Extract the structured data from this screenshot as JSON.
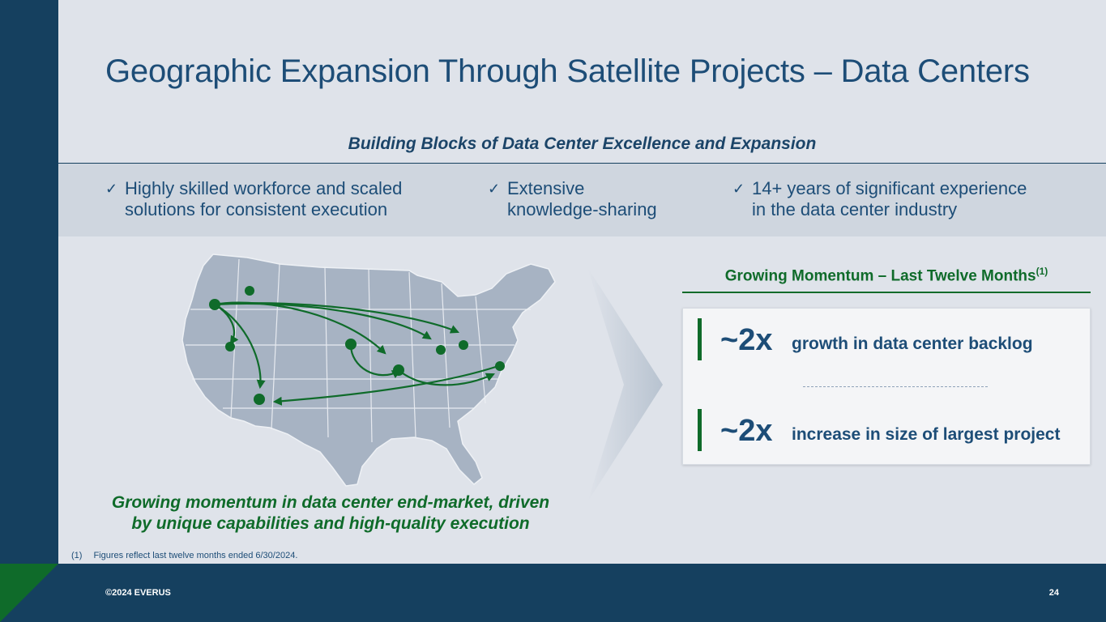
{
  "title": "Geographic Expansion Through Satellite Projects – Data Centers",
  "subtitle": "Building Blocks of Data Center Excellence and Expansion",
  "blocks": [
    {
      "check": "✓",
      "line1": "Highly skilled workforce and scaled",
      "line2": "solutions for consistent execution"
    },
    {
      "check": "✓",
      "line1": "Extensive",
      "line2": "knowledge-sharing"
    },
    {
      "check": "✓",
      "line1": "14+ years of significant experience",
      "line2": "in the data center industry"
    }
  ],
  "map_caption": {
    "line1": "Growing momentum in data center end-market, driven",
    "line2": "by unique capabilities and high-quality execution"
  },
  "momentum": {
    "title": "Growing Momentum – Last Twelve Months",
    "footnote_ref": "(1)",
    "stats": [
      {
        "value": "~2x",
        "label": "growth in data center backlog"
      },
      {
        "value": "~2x",
        "label": "increase in size of largest project"
      }
    ]
  },
  "footnote": {
    "num": "(1)",
    "text": "Figures reflect last twelve months ended 6/30/2024."
  },
  "footer": {
    "copyright": "©2024 EVERUS",
    "page": "24"
  },
  "colors": {
    "navy": "#15405f",
    "green": "#0f6b2a",
    "map_gray": "#a7b3c3"
  }
}
